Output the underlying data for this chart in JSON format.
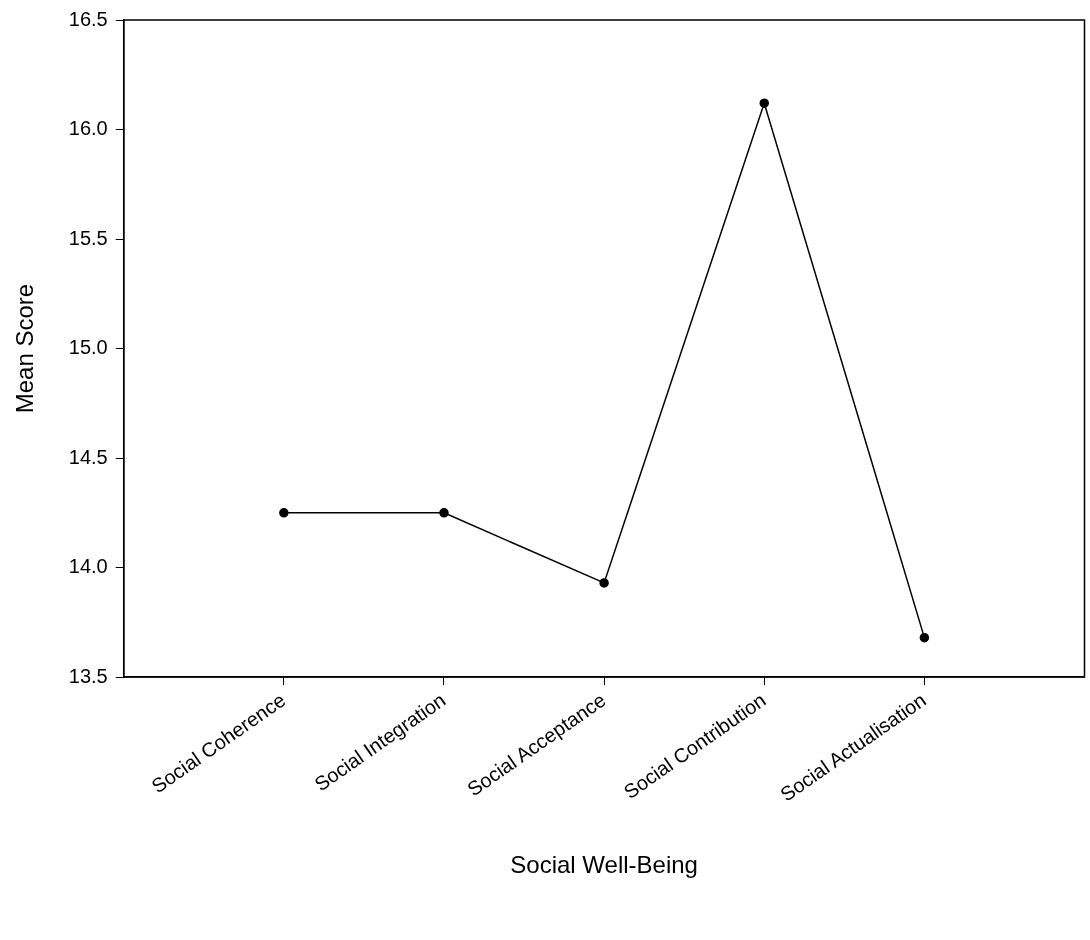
{
  "chart_data": {
    "type": "line",
    "xlabel": "Social Well-Being",
    "ylabel": "Mean Score",
    "categories": [
      "Social Coherence",
      "Social Integration",
      "Social Acceptance",
      "Social Contribution",
      "Social Actualisation"
    ],
    "values": [
      14.25,
      14.25,
      13.93,
      16.12,
      13.68
    ],
    "color": "#000000",
    "ylim": [
      13.5,
      16.5
    ],
    "yticks": [
      {
        "value": 13.5,
        "label": "13.5"
      },
      {
        "value": 14,
        "label": "14.0"
      },
      {
        "value": 14.5,
        "label": "14.5"
      },
      {
        "value": 15,
        "label": "15.0"
      },
      {
        "value": 15.5,
        "label": "15.5"
      },
      {
        "value": 16,
        "label": "16.0"
      },
      {
        "value": 16.5,
        "label": "16.5"
      }
    ],
    "marker": "circle",
    "line_style": "solid",
    "legend": false
  }
}
